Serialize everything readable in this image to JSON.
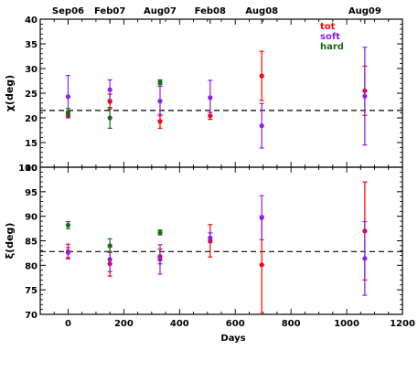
{
  "chart_data": [
    {
      "type": "scatter",
      "panel": "top",
      "ylabel": "χ(deg)",
      "xlim": [
        -100,
        1200
      ],
      "ylim": [
        10,
        40
      ],
      "yticks": [
        10,
        15,
        20,
        25,
        30,
        35,
        40
      ],
      "reference_line": 21.5,
      "epoch_labels": [
        {
          "label": "Sep06",
          "x": 0
        },
        {
          "label": "Feb07",
          "x": 150
        },
        {
          "label": "Aug07",
          "x": 330
        },
        {
          "label": "Feb08",
          "x": 510
        },
        {
          "label": "Aug08",
          "x": 695
        },
        {
          "label": "Aug09",
          "x": 1065
        }
      ],
      "legend": {
        "position": "top-right",
        "entries": [
          "tot",
          "soft",
          "hard"
        ]
      },
      "series": [
        {
          "name": "tot",
          "color": "#ff0000",
          "points": [
            {
              "x": 0,
              "y": 20.7,
              "err": 0.6
            },
            {
              "x": 150,
              "y": 23.3,
              "err": 1.5
            },
            {
              "x": 330,
              "y": 19.3,
              "err": 1.4
            },
            {
              "x": 510,
              "y": 20.4,
              "err": 0.7
            },
            {
              "x": 695,
              "y": 28.5,
              "err": 5.0
            },
            {
              "x": 1065,
              "y": 25.5,
              "err": 5.0
            }
          ]
        },
        {
          "name": "soft",
          "color": "#8b1fe8",
          "points": [
            {
              "x": 0,
              "y": 24.3,
              "err": 4.3
            },
            {
              "x": 150,
              "y": 25.7,
              "err": 2.0
            },
            {
              "x": 330,
              "y": 23.4,
              "err": 3.0
            },
            {
              "x": 510,
              "y": 24.1,
              "err": 3.5
            },
            {
              "x": 695,
              "y": 18.4,
              "err": 4.5
            },
            {
              "x": 1065,
              "y": 24.4,
              "err": 9.9
            }
          ]
        },
        {
          "name": "hard",
          "color": "#1a6b1a",
          "points": [
            {
              "x": 0,
              "y": 21.1,
              "err": 0.8
            },
            {
              "x": 150,
              "y": 20.0,
              "err": 2.1
            },
            {
              "x": 330,
              "y": 27.2,
              "err": 0.5
            }
          ]
        }
      ]
    },
    {
      "type": "scatter",
      "panel": "bottom",
      "ylabel": "ξ(deg)",
      "xlabel": "Days",
      "xlim": [
        -100,
        1200
      ],
      "ylim": [
        70,
        100
      ],
      "yticks": [
        70,
        75,
        80,
        85,
        90,
        95,
        100
      ],
      "xticks": [
        0,
        200,
        400,
        600,
        800,
        1000,
        1200
      ],
      "reference_line": 82.8,
      "series": [
        {
          "name": "tot",
          "color": "#ff0000",
          "points": [
            {
              "x": 0,
              "y": 82.8,
              "err": 1.5
            },
            {
              "x": 150,
              "y": 80.3,
              "err": 2.5
            },
            {
              "x": 330,
              "y": 81.8,
              "err": 1.5
            },
            {
              "x": 510,
              "y": 85.0,
              "err": 3.3
            },
            {
              "x": 695,
              "y": 80.1,
              "err": 10.0
            },
            {
              "x": 1065,
              "y": 87.0,
              "err": 10.0
            }
          ]
        },
        {
          "name": "soft",
          "color": "#8b1fe8",
          "points": [
            {
              "x": 0,
              "y": 82.6,
              "err": 1.0
            },
            {
              "x": 150,
              "y": 81.2,
              "err": 2.5
            },
            {
              "x": 330,
              "y": 81.2,
              "err": 3.0
            },
            {
              "x": 510,
              "y": 85.6,
              "err": 1.0
            },
            {
              "x": 695,
              "y": 89.7,
              "err": 4.5
            },
            {
              "x": 1065,
              "y": 81.4,
              "err": 7.5
            }
          ]
        },
        {
          "name": "hard",
          "color": "#1a6b1a",
          "points": [
            {
              "x": 0,
              "y": 88.2,
              "err": 0.7
            },
            {
              "x": 150,
              "y": 84.0,
              "err": 1.4
            },
            {
              "x": 330,
              "y": 86.7,
              "err": 0.5
            }
          ]
        }
      ]
    }
  ]
}
